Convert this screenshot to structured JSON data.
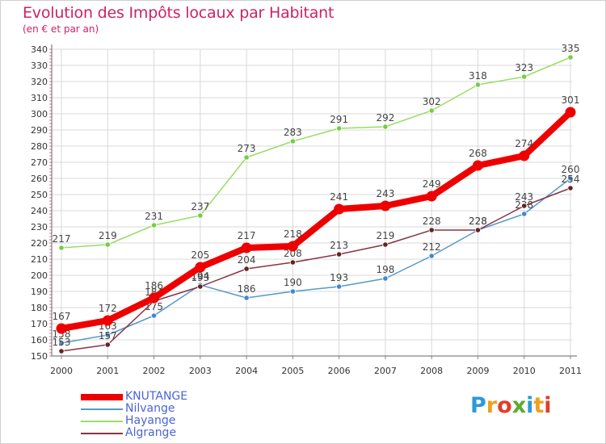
{
  "header": {
    "title": "Evolution des Impôts locaux par Habitant",
    "subtitle": "(en € et par an)"
  },
  "colors": {
    "title": "#cc2266",
    "legend_text": "#4b64d6",
    "grid": "#d8d8d8",
    "axis_text": "#333333"
  },
  "chart_data": {
    "type": "line",
    "title": "Evolution des Impôts locaux par Habitant",
    "subtitle": "(en € et par an)",
    "xlabel": "",
    "ylabel": "",
    "categories": [
      "2000",
      "2001",
      "2002",
      "2003",
      "2004",
      "2005",
      "2006",
      "2007",
      "2008",
      "2009",
      "2010",
      "2011"
    ],
    "ylim": [
      150,
      340
    ],
    "yticks": [
      150,
      160,
      170,
      180,
      190,
      200,
      210,
      220,
      230,
      240,
      250,
      260,
      270,
      280,
      290,
      300,
      310,
      320,
      330,
      340
    ],
    "grid": true,
    "legend_position": "bottom-left",
    "series": [
      {
        "name": "KNUTANGE",
        "color": "#ee0000",
        "point_color": "#ee0000",
        "emphasis": true,
        "values": [
          167,
          172,
          186,
          205,
          217,
          218,
          241,
          243,
          249,
          268,
          274,
          301
        ]
      },
      {
        "name": "Nilvange",
        "color": "#5599cc",
        "point_color": "#4488cc",
        "emphasis": false,
        "values": [
          158,
          163,
          175,
          194,
          186,
          190,
          193,
          198,
          212,
          228,
          238,
          260
        ]
      },
      {
        "name": "Hayange",
        "color": "#99dd66",
        "point_color": "#77cc44",
        "emphasis": false,
        "values": [
          217,
          219,
          231,
          237,
          273,
          283,
          291,
          292,
          302,
          318,
          323,
          335
        ]
      },
      {
        "name": "Algrange",
        "color": "#883344",
        "point_color": "#662222",
        "emphasis": false,
        "values": [
          153,
          157,
          184,
          193,
          204,
          208,
          213,
          219,
          228,
          228,
          243,
          254
        ]
      }
    ]
  },
  "legend": {
    "items": [
      {
        "label": "KNUTANGE",
        "color": "#ee0000"
      },
      {
        "label": "Nilvange",
        "color": "#5599cc"
      },
      {
        "label": "Hayange",
        "color": "#99dd66"
      },
      {
        "label": "Algrange",
        "color": "#883344"
      }
    ]
  },
  "logo": {
    "letters": [
      {
        "char": "P",
        "color": "#2a9ad6"
      },
      {
        "char": "r",
        "color": "#f0a020"
      },
      {
        "char": "o",
        "color": "#e43c2a"
      },
      {
        "char": "x",
        "color": "#5aab2e"
      },
      {
        "char": "i",
        "color": "#2a9ad6"
      },
      {
        "char": "t",
        "color": "#f0a020"
      },
      {
        "char": "i",
        "color": "#e43c2a"
      }
    ]
  }
}
